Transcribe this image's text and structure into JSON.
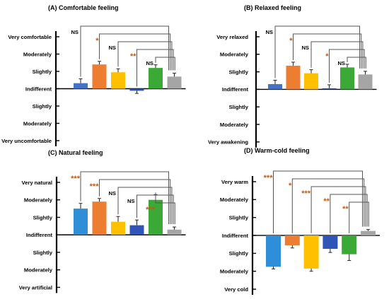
{
  "chart_data": [
    {
      "type": "bar",
      "title": "(A) Comfortable feeling",
      "tick_labels": [
        "Very comfortable",
        "Moderately",
        "Slightly",
        "Indifferent",
        "Slightly",
        "Moderately",
        "Very uncomfortable"
      ],
      "ylim": [
        -3,
        3
      ],
      "grid": false,
      "legend": "none",
      "values": [
        0.32,
        1.4,
        0.95,
        -0.12,
        1.2,
        0.7
      ],
      "errors": [
        0.25,
        0.18,
        0.2,
        0.15,
        0.18,
        0.2
      ],
      "colors": [
        "#4472c4",
        "#ed7d31",
        "#ffc000",
        "#2f55b8",
        "#3aa935",
        "#a5a5a5"
      ],
      "significance": [
        "NS",
        "*",
        "NS",
        "**",
        "NS"
      ],
      "significance_colors": [
        "#000000",
        "#c55a11",
        "#000000",
        "#c55a11",
        "#000000"
      ]
    },
    {
      "type": "bar",
      "title": "(B) Relaxed feeling",
      "tick_labels": [
        "Very relaxed",
        "Moderately",
        "Slightly",
        "Indifferent",
        "Slightly",
        "Moderately",
        "Very awakening"
      ],
      "ylim": [
        -3,
        3
      ],
      "grid": false,
      "legend": "none",
      "values": [
        0.3,
        1.35,
        0.92,
        0.06,
        1.25,
        0.85
      ],
      "errors": [
        0.22,
        0.2,
        0.2,
        0.2,
        0.18,
        0.18
      ],
      "colors": [
        "#4472c4",
        "#ed7d31",
        "#ffc000",
        "#2f55b8",
        "#3aa935",
        "#a5a5a5"
      ],
      "significance": [
        "NS",
        "*",
        "NS",
        "*",
        "NS"
      ],
      "significance_colors": [
        "#000000",
        "#c55a11",
        "#000000",
        "#c55a11",
        "#000000"
      ]
    },
    {
      "type": "bar",
      "title": "(C) Natural feeling",
      "tick_labels": [
        "Very natural",
        "Moderately",
        "Slightly",
        "Indifferent",
        "Slightly",
        "Moderately",
        "Very artificial"
      ],
      "ylim": [
        -3,
        3
      ],
      "grid": false,
      "legend": "none",
      "values": [
        1.5,
        1.9,
        0.75,
        0.55,
        2.0,
        0.3
      ],
      "errors": [
        0.3,
        0.18,
        0.3,
        0.3,
        0.3,
        0.15
      ],
      "colors": [
        "#2e8fd8",
        "#ed7d31",
        "#ffc000",
        "#2f55b8",
        "#3aa935",
        "#a5a5a5"
      ],
      "significance": [
        "***",
        "***",
        "NS",
        "NS",
        "***"
      ],
      "significance_colors": [
        "#c55a11",
        "#c55a11",
        "#000000",
        "#000000",
        "#c55a11"
      ]
    },
    {
      "type": "bar",
      "title": "(D) Warm-cold feeling",
      "tick_labels": [
        "Very warm",
        "Moderately",
        "Slightly",
        "Indifferent",
        "Slightly",
        "Moderately",
        "Very cold"
      ],
      "ylim": [
        -3,
        3
      ],
      "grid": false,
      "legend": "none",
      "values": [
        -1.75,
        -0.55,
        -1.85,
        -0.75,
        -1.05,
        0.25
      ],
      "errors": [
        0.12,
        0.15,
        0.15,
        0.2,
        0.35,
        0.08
      ],
      "colors": [
        "#2e8fd8",
        "#ed7d31",
        "#ffc000",
        "#2f55b8",
        "#3aa935",
        "#a5a5a5"
      ],
      "significance": [
        "***",
        "*",
        "***",
        "**",
        "**"
      ],
      "significance_colors": [
        "#c55a11",
        "#c55a11",
        "#c55a11",
        "#c55a11",
        "#c55a11"
      ]
    }
  ]
}
